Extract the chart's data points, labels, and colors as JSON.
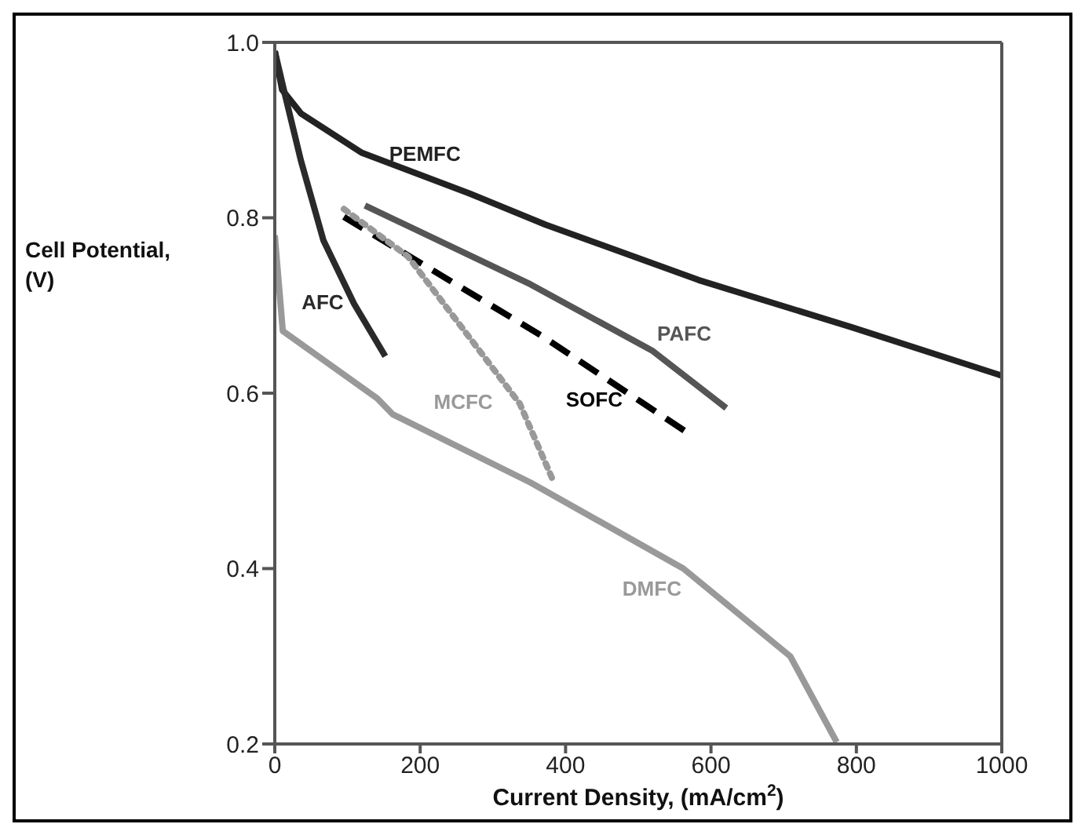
{
  "chart_data": {
    "type": "line",
    "xlabel": "Current Density, (mA/cm$^{2}$)",
    "ylabel": "Cell Potential, (V)",
    "xlim": [
      0,
      1000
    ],
    "xticks": [
      0,
      200,
      400,
      600,
      800,
      1000
    ],
    "ylim": [
      0.2,
      1.0
    ],
    "yticks": [
      {
        "value": 0.2,
        "label": "0.2"
      },
      {
        "value": 0.4,
        "label": "0.4"
      },
      {
        "value": 0.6,
        "label": "0.6"
      },
      {
        "value": 0.8,
        "label": "0.8"
      },
      {
        "value": 1.0,
        "label": "1.0"
      }
    ],
    "marker": "none",
    "series": [
      {
        "name": "PEMFC",
        "color": "#222222",
        "line_style": "solid",
        "x": [
          0,
          10,
          36,
          120,
          267,
          373,
          583,
          794,
          1000
        ],
        "values": [
          0.99,
          0.946,
          0.919,
          0.874,
          0.828,
          0.792,
          0.729,
          0.675,
          0.62
        ]
      },
      {
        "name": "AFC",
        "color": "#2a2a2a",
        "line_style": "solid",
        "x": [
          0,
          15,
          36,
          67,
          109,
          152
        ],
        "values": [
          0.99,
          0.937,
          0.865,
          0.774,
          0.702,
          0.642
        ]
      },
      {
        "name": "PAFC",
        "color": "#555555",
        "line_style": "solid",
        "x": [
          124,
          352,
          520,
          621
        ],
        "values": [
          0.814,
          0.724,
          0.648,
          0.583
        ]
      },
      {
        "name": "SOFC",
        "color": "#000000",
        "line_style": "dashed",
        "x": [
          95,
          366,
          573
        ],
        "values": [
          0.801,
          0.666,
          0.552
        ]
      },
      {
        "name": "MCFC",
        "color": "#999999",
        "line_style": "dotted",
        "x": [
          95,
          183,
          337,
          383
        ],
        "values": [
          0.81,
          0.756,
          0.588,
          0.5
        ]
      },
      {
        "name": "DMFC",
        "color": "#999999",
        "line_style": "solid",
        "x": [
          0,
          11,
          141,
          162,
          352,
          562,
          709,
          773
        ],
        "values": [
          0.78,
          0.671,
          0.594,
          0.576,
          0.498,
          0.4,
          0.3,
          0.202
        ]
      }
    ]
  }
}
